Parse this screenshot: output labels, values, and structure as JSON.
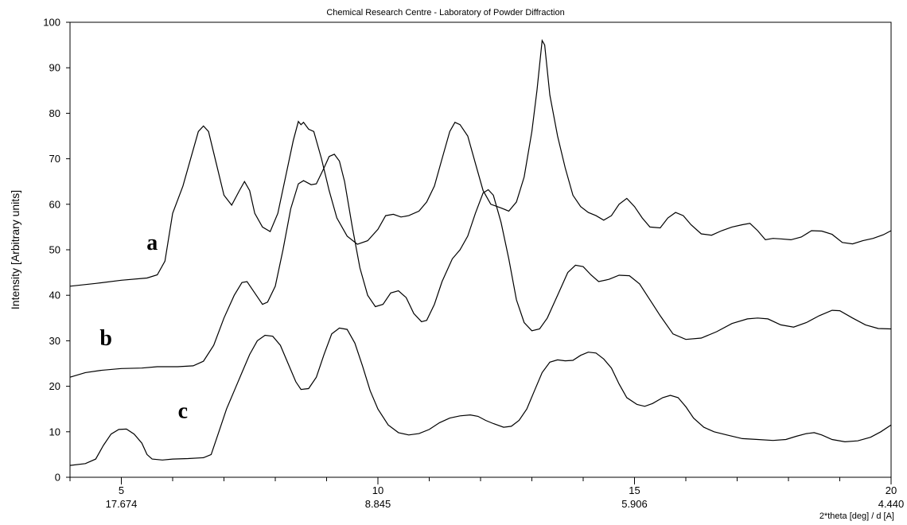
{
  "chart_data": {
    "type": "line",
    "title": "Chemical Research Centre - Laboratory of Powder Diffraction",
    "ylabel": "Intensity   [Arbitrary units]",
    "xlabel": "2*theta [deg] / d [A]",
    "xlim": [
      4,
      20
    ],
    "ylim": [
      0,
      100
    ],
    "y_ticks": [
      0,
      10,
      20,
      30,
      40,
      50,
      60,
      70,
      80,
      90,
      100
    ],
    "x_major_ticks": [
      {
        "value": 5,
        "theta_label": "5",
        "d_label": "17.674"
      },
      {
        "value": 10,
        "theta_label": "10",
        "d_label": "8.845"
      },
      {
        "value": 15,
        "theta_label": "15",
        "d_label": "5.906"
      },
      {
        "value": 20,
        "theta_label": "20",
        "d_label": "4.440"
      }
    ],
    "x_minor_step": 1,
    "grid": false,
    "series": [
      {
        "name": "a",
        "points": [
          [
            4.0,
            42.0
          ],
          [
            4.5,
            42.6
          ],
          [
            5.0,
            43.3
          ],
          [
            5.5,
            43.8
          ],
          [
            5.7,
            44.5
          ],
          [
            5.85,
            47.5
          ],
          [
            6.0,
            58
          ],
          [
            6.2,
            64
          ],
          [
            6.35,
            70
          ],
          [
            6.5,
            76
          ],
          [
            6.6,
            77.2
          ],
          [
            6.7,
            76
          ],
          [
            6.85,
            69
          ],
          [
            7.0,
            62
          ],
          [
            7.15,
            59.8
          ],
          [
            7.3,
            63
          ],
          [
            7.4,
            65
          ],
          [
            7.5,
            63
          ],
          [
            7.6,
            58
          ],
          [
            7.75,
            55
          ],
          [
            7.9,
            54
          ],
          [
            8.05,
            58
          ],
          [
            8.2,
            66
          ],
          [
            8.35,
            74
          ],
          [
            8.45,
            78.2
          ],
          [
            8.5,
            77.5
          ],
          [
            8.55,
            78
          ],
          [
            8.65,
            76.5
          ],
          [
            8.75,
            76
          ],
          [
            8.9,
            70
          ],
          [
            9.05,
            63
          ],
          [
            9.2,
            57
          ],
          [
            9.4,
            53
          ],
          [
            9.6,
            51.2
          ],
          [
            9.8,
            52
          ],
          [
            10.0,
            54.5
          ],
          [
            10.15,
            57.5
          ],
          [
            10.3,
            57.8
          ],
          [
            10.45,
            57.2
          ],
          [
            10.6,
            57.5
          ],
          [
            10.8,
            58.5
          ],
          [
            10.95,
            60.5
          ],
          [
            11.1,
            64
          ],
          [
            11.25,
            70
          ],
          [
            11.4,
            76
          ],
          [
            11.5,
            78
          ],
          [
            11.6,
            77.5
          ],
          [
            11.75,
            75
          ],
          [
            11.9,
            69
          ],
          [
            12.05,
            63
          ],
          [
            12.2,
            60
          ],
          [
            12.4,
            59.2
          ],
          [
            12.55,
            58.5
          ],
          [
            12.7,
            60.5
          ],
          [
            12.85,
            66
          ],
          [
            13.0,
            76
          ],
          [
            13.1,
            85
          ],
          [
            13.2,
            96
          ],
          [
            13.25,
            95
          ],
          [
            13.35,
            84
          ],
          [
            13.5,
            75
          ],
          [
            13.65,
            68
          ],
          [
            13.8,
            62
          ],
          [
            13.95,
            59.5
          ],
          [
            14.1,
            58.2
          ],
          [
            14.25,
            57.5
          ],
          [
            14.4,
            56.5
          ],
          [
            14.55,
            57.5
          ],
          [
            14.7,
            60
          ],
          [
            14.85,
            61.3
          ],
          [
            15.0,
            59.5
          ],
          [
            15.15,
            57
          ],
          [
            15.3,
            55
          ],
          [
            15.5,
            54.8
          ],
          [
            15.65,
            57
          ],
          [
            15.8,
            58.2
          ],
          [
            15.95,
            57.5
          ],
          [
            16.1,
            55.5
          ],
          [
            16.3,
            53.5
          ],
          [
            16.5,
            53.2
          ],
          [
            16.7,
            54.2
          ],
          [
            16.9,
            55
          ],
          [
            17.1,
            55.5
          ],
          [
            17.25,
            55.8
          ],
          [
            17.4,
            54.2
          ],
          [
            17.55,
            52.2
          ],
          [
            17.7,
            52.5
          ],
          [
            17.85,
            52.4
          ],
          [
            18.05,
            52.2
          ],
          [
            18.25,
            52.8
          ],
          [
            18.45,
            54.2
          ],
          [
            18.65,
            54.1
          ],
          [
            18.85,
            53.4
          ],
          [
            19.05,
            51.6
          ],
          [
            19.25,
            51.3
          ],
          [
            19.45,
            52
          ],
          [
            19.65,
            52.5
          ],
          [
            19.85,
            53.3
          ],
          [
            20.0,
            54.2
          ]
        ]
      },
      {
        "name": "b",
        "points": [
          [
            4.0,
            22.0
          ],
          [
            4.3,
            23.0
          ],
          [
            4.6,
            23.5
          ],
          [
            5.0,
            23.9
          ],
          [
            5.4,
            24.0
          ],
          [
            5.7,
            24.3
          ],
          [
            6.1,
            24.3
          ],
          [
            6.4,
            24.5
          ],
          [
            6.6,
            25.5
          ],
          [
            6.8,
            29
          ],
          [
            7.0,
            35
          ],
          [
            7.2,
            40
          ],
          [
            7.35,
            42.8
          ],
          [
            7.45,
            43
          ],
          [
            7.6,
            40.5
          ],
          [
            7.75,
            38
          ],
          [
            7.85,
            38.5
          ],
          [
            8.0,
            42
          ],
          [
            8.15,
            50
          ],
          [
            8.3,
            59
          ],
          [
            8.45,
            64.5
          ],
          [
            8.55,
            65.2
          ],
          [
            8.7,
            64.3
          ],
          [
            8.8,
            64.5
          ],
          [
            8.95,
            68
          ],
          [
            9.05,
            70.5
          ],
          [
            9.15,
            71
          ],
          [
            9.25,
            69.5
          ],
          [
            9.35,
            65
          ],
          [
            9.5,
            55
          ],
          [
            9.65,
            46
          ],
          [
            9.8,
            40
          ],
          [
            9.95,
            37.5
          ],
          [
            10.1,
            38
          ],
          [
            10.25,
            40.5
          ],
          [
            10.4,
            41
          ],
          [
            10.55,
            39.5
          ],
          [
            10.7,
            36
          ],
          [
            10.85,
            34.2
          ],
          [
            10.95,
            34.5
          ],
          [
            11.1,
            38
          ],
          [
            11.25,
            43
          ],
          [
            11.45,
            48
          ],
          [
            11.6,
            50
          ],
          [
            11.75,
            53
          ],
          [
            11.9,
            58
          ],
          [
            12.05,
            62.5
          ],
          [
            12.15,
            63.2
          ],
          [
            12.25,
            62
          ],
          [
            12.4,
            56
          ],
          [
            12.55,
            48
          ],
          [
            12.7,
            39
          ],
          [
            12.85,
            34
          ],
          [
            13.0,
            32.2
          ],
          [
            13.15,
            32.6
          ],
          [
            13.3,
            35
          ],
          [
            13.5,
            40
          ],
          [
            13.7,
            45
          ],
          [
            13.85,
            46.6
          ],
          [
            14.0,
            46.3
          ],
          [
            14.15,
            44.5
          ],
          [
            14.3,
            43
          ],
          [
            14.5,
            43.5
          ],
          [
            14.7,
            44.4
          ],
          [
            14.9,
            44.3
          ],
          [
            15.1,
            42.5
          ],
          [
            15.3,
            39
          ],
          [
            15.5,
            35.5
          ],
          [
            15.75,
            31.5
          ],
          [
            16.0,
            30.3
          ],
          [
            16.3,
            30.6
          ],
          [
            16.6,
            32
          ],
          [
            16.9,
            33.8
          ],
          [
            17.2,
            34.8
          ],
          [
            17.4,
            35
          ],
          [
            17.6,
            34.8
          ],
          [
            17.85,
            33.5
          ],
          [
            18.1,
            33
          ],
          [
            18.35,
            34
          ],
          [
            18.6,
            35.5
          ],
          [
            18.85,
            36.7
          ],
          [
            19.0,
            36.6
          ],
          [
            19.25,
            35
          ],
          [
            19.5,
            33.5
          ],
          [
            19.75,
            32.7
          ],
          [
            20.0,
            32.6
          ]
        ]
      },
      {
        "name": "c",
        "points": [
          [
            4.0,
            2.6
          ],
          [
            4.3,
            3
          ],
          [
            4.5,
            4
          ],
          [
            4.65,
            7
          ],
          [
            4.8,
            9.5
          ],
          [
            4.95,
            10.5
          ],
          [
            5.1,
            10.6
          ],
          [
            5.25,
            9.5
          ],
          [
            5.4,
            7.5
          ],
          [
            5.5,
            5
          ],
          [
            5.6,
            4
          ],
          [
            5.8,
            3.8
          ],
          [
            6.0,
            4
          ],
          [
            6.3,
            4.1
          ],
          [
            6.6,
            4.3
          ],
          [
            6.75,
            5
          ],
          [
            6.9,
            10
          ],
          [
            7.05,
            15
          ],
          [
            7.2,
            19
          ],
          [
            7.35,
            23
          ],
          [
            7.5,
            27
          ],
          [
            7.65,
            30
          ],
          [
            7.8,
            31.2
          ],
          [
            7.95,
            31
          ],
          [
            8.1,
            29
          ],
          [
            8.25,
            25
          ],
          [
            8.4,
            21
          ],
          [
            8.5,
            19.3
          ],
          [
            8.65,
            19.5
          ],
          [
            8.8,
            22
          ],
          [
            8.95,
            27
          ],
          [
            9.1,
            31.5
          ],
          [
            9.25,
            32.8
          ],
          [
            9.4,
            32.5
          ],
          [
            9.55,
            29.5
          ],
          [
            9.7,
            24.5
          ],
          [
            9.85,
            19
          ],
          [
            10.0,
            15
          ],
          [
            10.2,
            11.5
          ],
          [
            10.4,
            9.8
          ],
          [
            10.6,
            9.3
          ],
          [
            10.8,
            9.6
          ],
          [
            11.0,
            10.5
          ],
          [
            11.2,
            12
          ],
          [
            11.4,
            13
          ],
          [
            11.6,
            13.5
          ],
          [
            11.8,
            13.7
          ],
          [
            11.95,
            13.4
          ],
          [
            12.1,
            12.5
          ],
          [
            12.25,
            11.8
          ],
          [
            12.45,
            11
          ],
          [
            12.6,
            11.2
          ],
          [
            12.75,
            12.5
          ],
          [
            12.9,
            15
          ],
          [
            13.05,
            19
          ],
          [
            13.2,
            23
          ],
          [
            13.35,
            25.3
          ],
          [
            13.5,
            25.8
          ],
          [
            13.65,
            25.6
          ],
          [
            13.8,
            25.7
          ],
          [
            13.95,
            26.8
          ],
          [
            14.1,
            27.5
          ],
          [
            14.25,
            27.3
          ],
          [
            14.4,
            26
          ],
          [
            14.55,
            24
          ],
          [
            14.7,
            20.5
          ],
          [
            14.85,
            17.5
          ],
          [
            15.05,
            16
          ],
          [
            15.2,
            15.6
          ],
          [
            15.35,
            16.2
          ],
          [
            15.55,
            17.5
          ],
          [
            15.7,
            18
          ],
          [
            15.85,
            17.5
          ],
          [
            16.0,
            15.5
          ],
          [
            16.15,
            13
          ],
          [
            16.35,
            11
          ],
          [
            16.55,
            10
          ],
          [
            16.8,
            9.3
          ],
          [
            17.1,
            8.5
          ],
          [
            17.4,
            8.3
          ],
          [
            17.7,
            8.1
          ],
          [
            17.95,
            8.3
          ],
          [
            18.15,
            9
          ],
          [
            18.35,
            9.6
          ],
          [
            18.5,
            9.8
          ],
          [
            18.65,
            9.3
          ],
          [
            18.85,
            8.3
          ],
          [
            19.1,
            7.8
          ],
          [
            19.35,
            8
          ],
          [
            19.6,
            8.8
          ],
          [
            19.8,
            10
          ],
          [
            20.0,
            11.5
          ]
        ]
      }
    ],
    "curve_labels": [
      {
        "text": "a",
        "x": 5.6,
        "y": 50
      },
      {
        "text": "b",
        "x": 4.7,
        "y": 29
      },
      {
        "text": "c",
        "x": 6.2,
        "y": 13
      }
    ]
  }
}
